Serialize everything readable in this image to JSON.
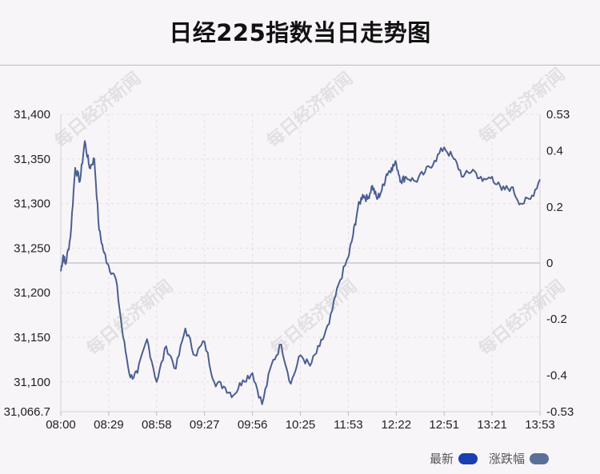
{
  "title": "日经225指数当日走势图",
  "watermark": "每日经济新闻",
  "legend": {
    "latest_label": "最新",
    "change_label": "涨跌幅",
    "latest_color": "#1a3fb0",
    "change_color": "#5b7099"
  },
  "colors": {
    "line": "#4a5f92",
    "zero_line": "#c8c8cc",
    "grid": "#e2dde4"
  },
  "chart_data": {
    "type": "line",
    "title": "日经225指数当日走势图",
    "y_left": {
      "min": 31066.7,
      "max": 31400,
      "ticks": [
        31400,
        31350,
        31300,
        31250,
        31200,
        31150,
        31100
      ],
      "min_label": "31,066.7"
    },
    "y_right": {
      "min": -0.53,
      "max": 0.53,
      "ticks": [
        0.53,
        0.4,
        0.2,
        0,
        -0.2,
        -0.4,
        -0.53
      ],
      "labels": [
        "0.53",
        "0.4",
        "0.2",
        "0",
        "-0.2",
        "-0.4",
        "-0.53"
      ]
    },
    "x_ticks": [
      "08:00",
      "08:29",
      "08:58",
      "09:27",
      "09:56",
      "10:25",
      "11:53",
      "12:22",
      "12:51",
      "13:21",
      "13:53"
    ],
    "grid": true,
    "legend_position": "bottom-right",
    "series": [
      {
        "name": "最新",
        "x_index": [
          0,
          0.05,
          0.1,
          0.2,
          0.3,
          0.4,
          0.5,
          0.6,
          0.7,
          0.8,
          0.9,
          1.0,
          1.15,
          1.3,
          1.45,
          1.6,
          1.8,
          2.0,
          2.2,
          2.4,
          2.6,
          2.8,
          3.0,
          3.2,
          3.4,
          3.6,
          3.8,
          4.0,
          4.2,
          4.4,
          4.6,
          4.8,
          5.0,
          5.2,
          5.4,
          5.6,
          5.8,
          6.0,
          6.1,
          6.2,
          6.3,
          6.4,
          6.5,
          6.6,
          6.7,
          6.8,
          6.9,
          7.0,
          7.1,
          7.2,
          7.4,
          7.6,
          7.8,
          8.0,
          8.2,
          8.4,
          8.6,
          8.8,
          9.0,
          9.2,
          9.4,
          9.6,
          9.8,
          10.0
        ],
        "values": [
          31224,
          31242,
          31232,
          31262,
          31340,
          31325,
          31370,
          31340,
          31350,
          31270,
          31245,
          31230,
          31215,
          31150,
          31105,
          31110,
          31148,
          31100,
          31140,
          31115,
          31160,
          31130,
          31145,
          31100,
          31095,
          31085,
          31102,
          31110,
          31075,
          31120,
          31142,
          31098,
          31130,
          31118,
          31140,
          31165,
          31210,
          31240,
          31265,
          31295,
          31310,
          31305,
          31320,
          31305,
          31315,
          31333,
          31340,
          31345,
          31325,
          31330,
          31325,
          31335,
          31348,
          31363,
          31350,
          31330,
          31338,
          31325,
          31330,
          31315,
          31318,
          31300,
          31305,
          31327
        ]
      }
    ]
  }
}
